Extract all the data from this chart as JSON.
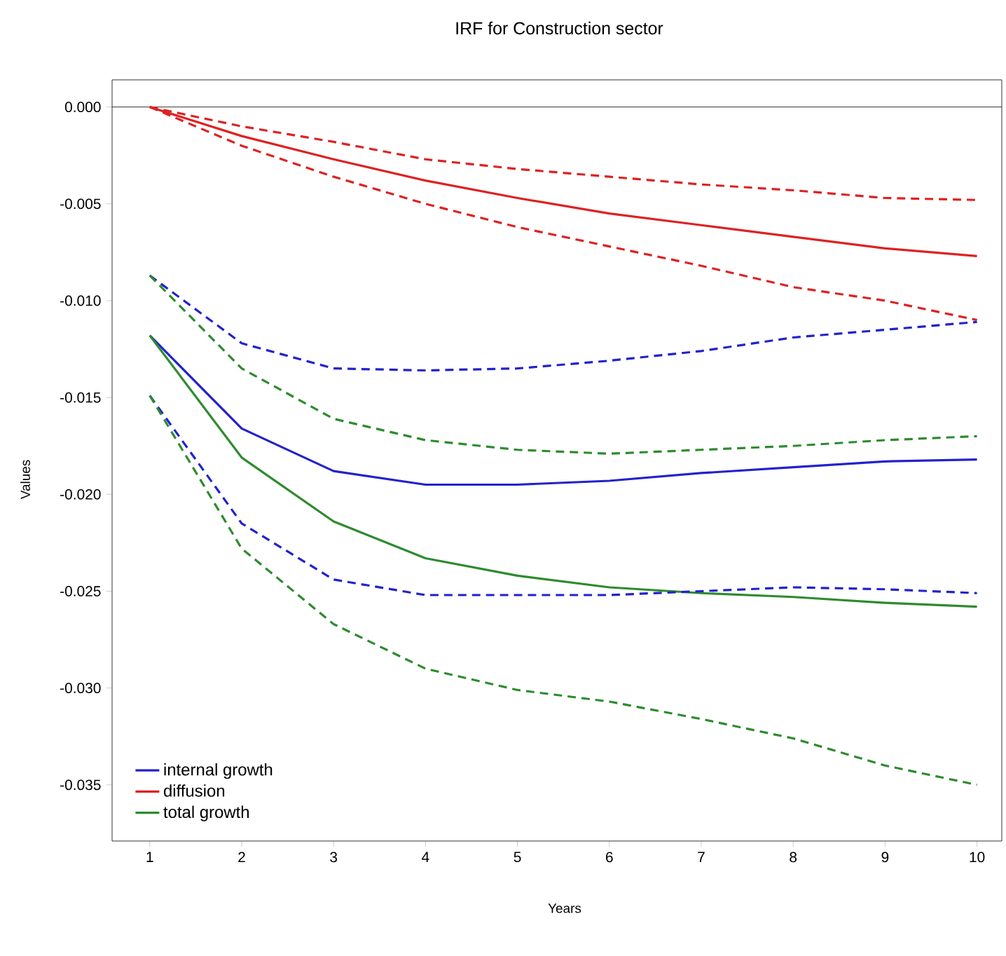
{
  "chart_data": {
    "type": "line",
    "title": "IRF for Construction sector",
    "xlabel": "Years",
    "ylabel": "Values",
    "x": [
      1,
      2,
      3,
      4,
      5,
      6,
      7,
      8,
      9,
      10
    ],
    "series": [
      {
        "name": "internal growth",
        "color": "#2222cc",
        "line_style": "solid",
        "values": [
          -0.0118,
          -0.0166,
          -0.0188,
          -0.0195,
          -0.0195,
          -0.0193,
          -0.0189,
          -0.0186,
          -0.0183,
          -0.0182
        ]
      },
      {
        "name": "diffusion",
        "color": "#dd2222",
        "line_style": "solid",
        "values": [
          0,
          -0.0015,
          -0.0027,
          -0.0038,
          -0.0047,
          -0.0055,
          -0.0061,
          -0.0067,
          -0.0073,
          -0.0077
        ]
      },
      {
        "name": "total growth",
        "color": "#2e8b2e",
        "line_style": "solid",
        "values": [
          -0.0118,
          -0.0181,
          -0.0214,
          -0.0233,
          -0.0242,
          -0.0248,
          -0.0251,
          -0.0253,
          -0.0256,
          -0.0258
        ]
      },
      {
        "color": "#2222cc",
        "line_style": "dashed",
        "values": [
          -0.0087,
          -0.0122,
          -0.0135,
          -0.0136,
          -0.0135,
          -0.0131,
          -0.0126,
          -0.0119,
          -0.0115,
          -0.0111
        ]
      },
      {
        "color": "#2222cc",
        "line_style": "dashed",
        "values": [
          -0.0149,
          -0.0215,
          -0.0244,
          -0.0252,
          -0.0252,
          -0.0252,
          -0.025,
          -0.0248,
          -0.0249,
          -0.0251
        ]
      },
      {
        "color": "#dd2222",
        "line_style": "dashed",
        "values": [
          0,
          -0.001,
          -0.0018,
          -0.0027,
          -0.0032,
          -0.0036,
          -0.004,
          -0.0043,
          -0.0047,
          -0.0048
        ]
      },
      {
        "color": "#dd2222",
        "line_style": "dashed",
        "values": [
          0,
          -0.002,
          -0.0036,
          -0.005,
          -0.0062,
          -0.0072,
          -0.0082,
          -0.0093,
          -0.01,
          -0.011
        ]
      },
      {
        "color": "#2e8b2e",
        "line_style": "dashed",
        "values": [
          -0.0087,
          -0.0135,
          -0.0161,
          -0.0172,
          -0.0177,
          -0.0179,
          -0.0177,
          -0.0175,
          -0.0172,
          -0.017
        ]
      },
      {
        "color": "#2e8b2e",
        "line_style": "dashed",
        "values": [
          -0.0149,
          -0.0228,
          -0.0267,
          -0.029,
          -0.0301,
          -0.0307,
          -0.0316,
          -0.0326,
          -0.034,
          -0.035
        ]
      }
    ],
    "xlim": [
      0.59,
      10.27
    ],
    "ylim": [
      -0.0379,
      0.0014
    ],
    "xticks": [
      1,
      2,
      3,
      4,
      5,
      6,
      7,
      8,
      9,
      10
    ],
    "yticks": [
      {
        "value": 0,
        "label": "0.000"
      },
      {
        "value": -0.005,
        "label": "-0.005"
      },
      {
        "value": -0.01,
        "label": "-0.010"
      },
      {
        "value": -0.015,
        "label": "-0.015"
      },
      {
        "value": -0.02,
        "label": "-0.020"
      },
      {
        "value": -0.025,
        "label": "-0.025"
      },
      {
        "value": -0.03,
        "label": "-0.030"
      },
      {
        "value": -0.035,
        "label": "-0.035"
      }
    ],
    "ref_lines": [
      {
        "axis": "y",
        "value": 0,
        "color": "#000000",
        "line_style": "solid"
      }
    ],
    "legend": "bottom left",
    "grid": false,
    "marker": "none"
  }
}
